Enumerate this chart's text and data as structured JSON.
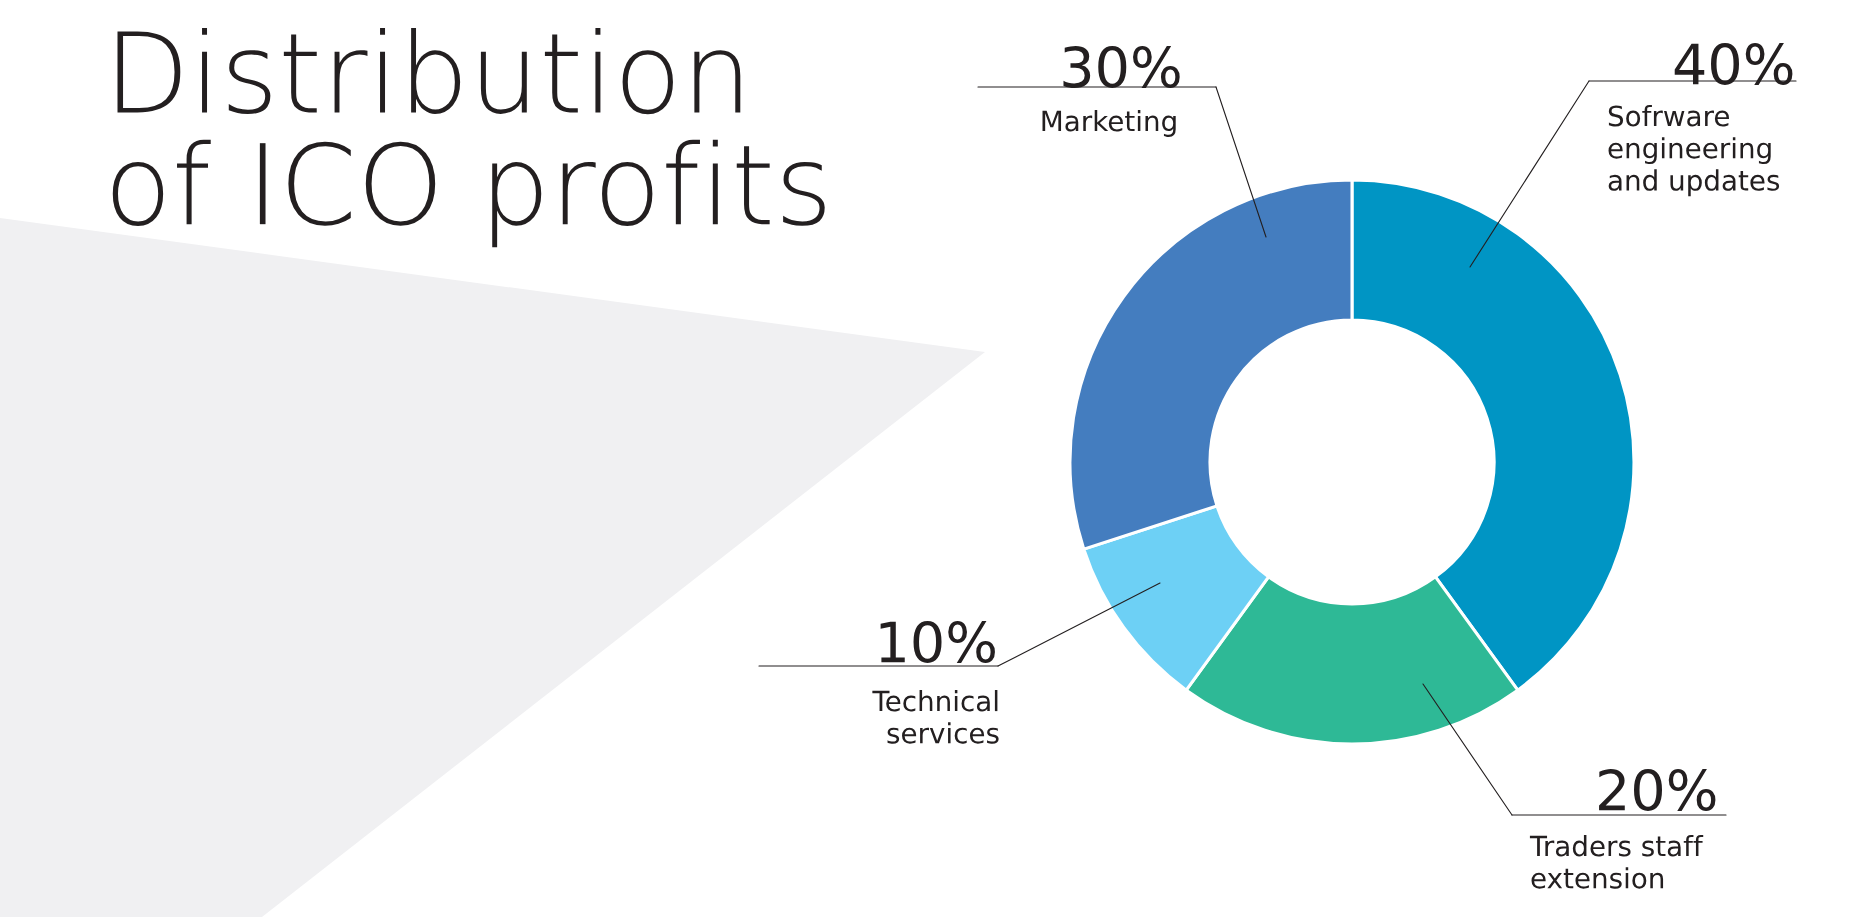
{
  "chart_data": {
    "type": "donut",
    "title": "Distribution\nof ICO profits",
    "categories": [
      "Sofrware\nengineering\nand updates",
      "Traders staff\nextension",
      "Technical\nservices",
      "Marketing"
    ],
    "values": [
      40,
      20,
      10,
      30
    ],
    "value_labels": [
      "40%",
      "20%",
      "10%",
      "30%"
    ],
    "colors": [
      "#0095c4",
      "#2eb996",
      "#6dd0f5",
      "#447dbf"
    ]
  }
}
